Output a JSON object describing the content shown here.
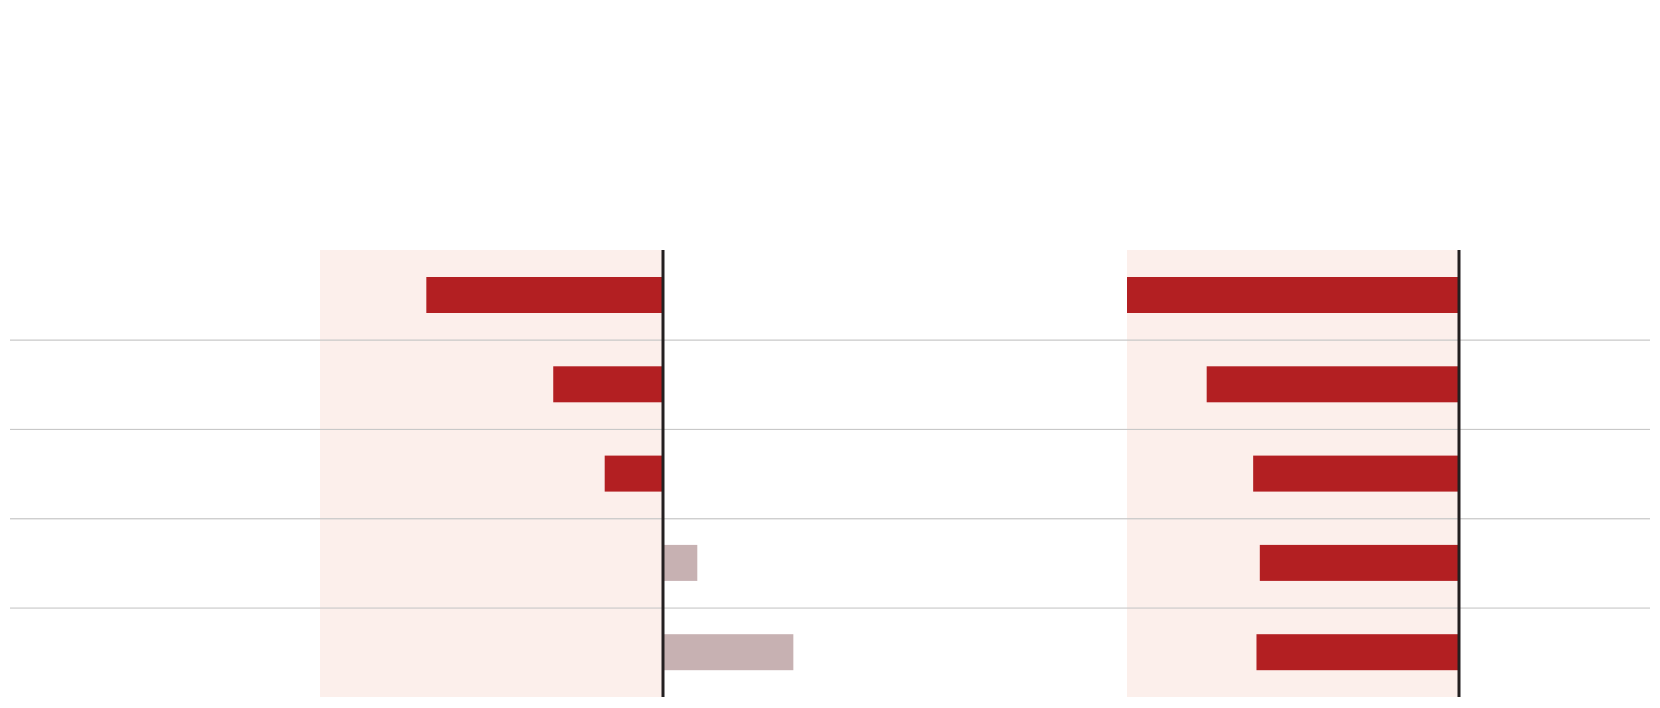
{
  "colors": {
    "negative_bar": "#b31f22",
    "positive_bar": "#c7b1b2",
    "panel_shade": "#fcefeb",
    "baseline": "#231f20",
    "separator": "#c8c8c8",
    "background": "#ffffff"
  },
  "chart_data": [
    {
      "type": "bar",
      "orientation": "horizontal",
      "title": "",
      "xlabel": "",
      "ylabel": "",
      "categories": [
        "",
        "",
        "",
        "",
        ""
      ],
      "values": [
        -69,
        -32,
        -17,
        10,
        38
      ],
      "xlim": [
        -100,
        40
      ],
      "shaded_range": [
        -100,
        0
      ],
      "grid": false
    },
    {
      "type": "bar",
      "orientation": "horizontal",
      "title": "",
      "xlabel": "",
      "ylabel": "",
      "categories": [
        "",
        "",
        "",
        "",
        ""
      ],
      "values": [
        -100,
        -76,
        -62,
        -60,
        -61
      ],
      "xlim": [
        -100,
        40
      ],
      "shaded_range": [
        -100,
        0
      ],
      "grid": false
    }
  ]
}
